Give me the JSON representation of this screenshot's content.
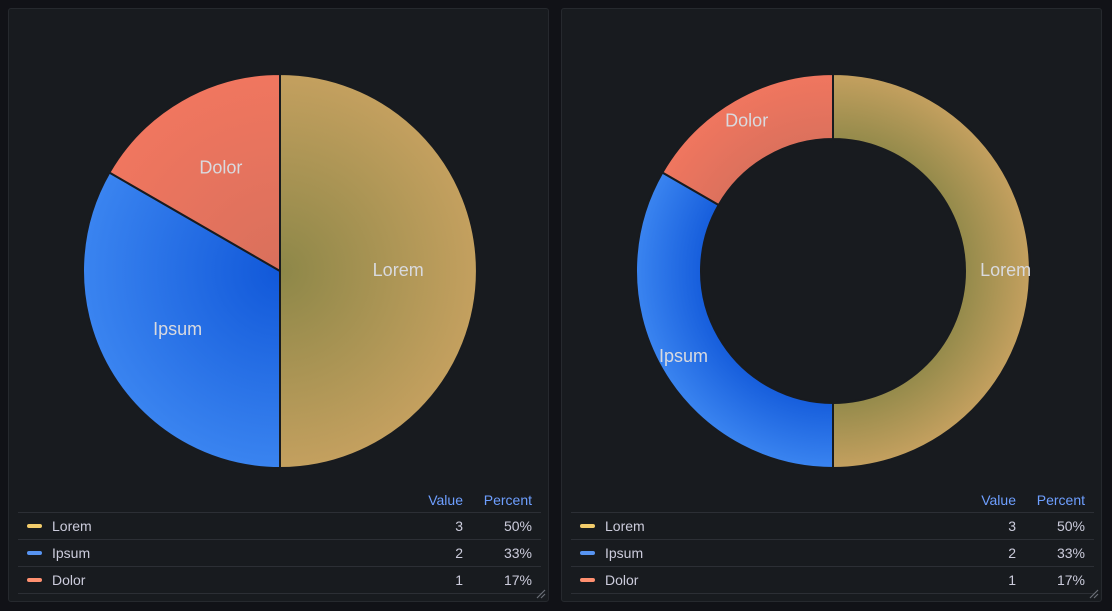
{
  "colors": {
    "Lorem": "#c4a05f",
    "Ipsum": "#3a84f0",
    "Dolor": "#f0765f",
    "LoremInner": "#8d8748",
    "IpsumInner": "#1158d9",
    "DolorInner": "#d9705c"
  },
  "legend_headers": {
    "value": "Value",
    "percent": "Percent"
  },
  "chart_data": [
    {
      "type": "pie",
      "title": "",
      "categories": [
        "Lorem",
        "Ipsum",
        "Dolor"
      ],
      "values": [
        3,
        2,
        1
      ],
      "percents": [
        "50%",
        "33%",
        "17%"
      ],
      "legend": [
        {
          "name": "Lorem",
          "value": "3",
          "percent": "50%"
        },
        {
          "name": "Ipsum",
          "value": "2",
          "percent": "33%"
        },
        {
          "name": "Dolor",
          "value": "1",
          "percent": "17%"
        }
      ]
    },
    {
      "type": "pie",
      "variant": "donut",
      "title": "",
      "categories": [
        "Lorem",
        "Ipsum",
        "Dolor"
      ],
      "values": [
        3,
        2,
        1
      ],
      "percents": [
        "50%",
        "33%",
        "17%"
      ],
      "legend": [
        {
          "name": "Lorem",
          "value": "3",
          "percent": "50%"
        },
        {
          "name": "Ipsum",
          "value": "2",
          "percent": "33%"
        },
        {
          "name": "Dolor",
          "value": "1",
          "percent": "17%"
        }
      ]
    }
  ]
}
